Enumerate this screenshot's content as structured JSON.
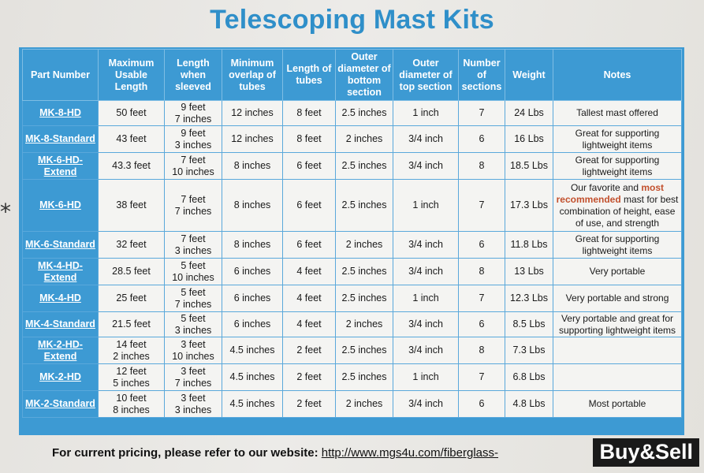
{
  "title": "Telescoping Mast Kits",
  "headers": [
    "Part Number",
    "Maximum Usable Length",
    "Length when sleeved",
    "Minimum overlap of tubes",
    "Length of tubes",
    "Outer diameter of bottom section",
    "Outer diameter of top section",
    "Number of sections",
    "Weight",
    "Notes"
  ],
  "rows": [
    {
      "part": "MK-8-HD",
      "max": "50 feet",
      "sleeved": [
        "9 feet",
        "7 inches"
      ],
      "overlap": "12 inches",
      "tube": "8 feet",
      "bottom": "2.5 inches",
      "top": "1 inch",
      "sections": "7",
      "weight": "24 Lbs",
      "notes": [
        "Tallest mast offered"
      ]
    },
    {
      "part": "MK-8-Standard",
      "max": "43 feet",
      "sleeved": [
        "9 feet",
        "3 inches"
      ],
      "overlap": "12 inches",
      "tube": "8 feet",
      "bottom": "2 inches",
      "top": "3/4 inch",
      "sections": "6",
      "weight": "16 Lbs",
      "notes": [
        "Great for supporting",
        "lightweight items"
      ]
    },
    {
      "part": "MK-6-HD-Extend",
      "max": "43.3 feet",
      "sleeved": [
        "7 feet",
        "10 inches"
      ],
      "overlap": "8 inches",
      "tube": "6 feet",
      "bottom": "2.5 inches",
      "top": "3/4 inch",
      "sections": "8",
      "weight": "18.5 Lbs",
      "notes": [
        "Great for supporting",
        "lightweight items"
      ]
    },
    {
      "part": "MK-6-HD",
      "max": "38 feet",
      "sleeved": [
        "7 feet",
        "7 inches"
      ],
      "overlap": "8 inches",
      "tube": "6 feet",
      "bottom": "2.5 inches",
      "top": "1 inch",
      "sections": "7",
      "weight": "17.3 Lbs",
      "notes_rich": {
        "a": "Our favorite and ",
        "b": "most recommended",
        "c": " mast for best combination of height, ease of use, and strength"
      }
    },
    {
      "part": "MK-6-Standard",
      "max": "32 feet",
      "sleeved": [
        "7 feet",
        "3 inches"
      ],
      "overlap": "8 inches",
      "tube": "6 feet",
      "bottom": "2 inches",
      "top": "3/4 inch",
      "sections": "6",
      "weight": "11.8 Lbs",
      "notes": [
        "Great for supporting",
        "lightweight items"
      ]
    },
    {
      "part": "MK-4-HD-Extend",
      "max": "28.5 feet",
      "sleeved": [
        "5 feet",
        "10 inches"
      ],
      "overlap": "6 inches",
      "tube": "4 feet",
      "bottom": "2.5 inches",
      "top": "3/4 inch",
      "sections": "8",
      "weight": "13 Lbs",
      "notes": [
        "Very portable"
      ]
    },
    {
      "part": "MK-4-HD",
      "max": "25 feet",
      "sleeved": [
        "5 feet",
        "7 inches"
      ],
      "overlap": "6 inches",
      "tube": "4 feet",
      "bottom": "2.5 inches",
      "top": "1 inch",
      "sections": "7",
      "weight": "12.3 Lbs",
      "notes": [
        "Very portable and strong"
      ]
    },
    {
      "part": "MK-4-Standard",
      "max": "21.5 feet",
      "sleeved": [
        "5 feet",
        "3 inches"
      ],
      "overlap": "6 inches",
      "tube": "4 feet",
      "bottom": "2 inches",
      "top": "3/4 inch",
      "sections": "6",
      "weight": "8.5 Lbs",
      "notes": [
        "Very portable and great for",
        "supporting lightweight items"
      ]
    },
    {
      "part": "MK-2-HD-Extend",
      "max": [
        "14 feet",
        "2 inches"
      ],
      "sleeved": [
        "3 feet",
        "10 inches"
      ],
      "overlap": "4.5 inches",
      "tube": "2 feet",
      "bottom": "2.5 inches",
      "top": "3/4 inch",
      "sections": "8",
      "weight": "7.3 Lbs",
      "notes": []
    },
    {
      "part": "MK-2-HD",
      "max": [
        "12 feet",
        "5 inches"
      ],
      "sleeved": [
        "3 feet",
        "7 inches"
      ],
      "overlap": "4.5 inches",
      "tube": "2 feet",
      "bottom": "2.5 inches",
      "top": "1 inch",
      "sections": "7",
      "weight": "6.8 Lbs",
      "notes": []
    },
    {
      "part": "MK-2-Standard",
      "max": [
        "10 feet",
        "8 inches"
      ],
      "sleeved": [
        "3 feet",
        "3 inches"
      ],
      "overlap": "4.5 inches",
      "tube": "2 feet",
      "bottom": "2 inches",
      "top": "3/4 inch",
      "sections": "6",
      "weight": "4.8 Lbs",
      "notes": [
        "Most portable"
      ]
    }
  ],
  "footer": {
    "text": "For current pricing, please refer to our website:",
    "link": "http://www.mgs4u.com/fiberglass-"
  },
  "badge": "Buy&Sell",
  "mark": "*",
  "colors": {
    "accent": "#3d9ad3",
    "title": "#2f8fc9",
    "recommended": "#c2502d"
  }
}
